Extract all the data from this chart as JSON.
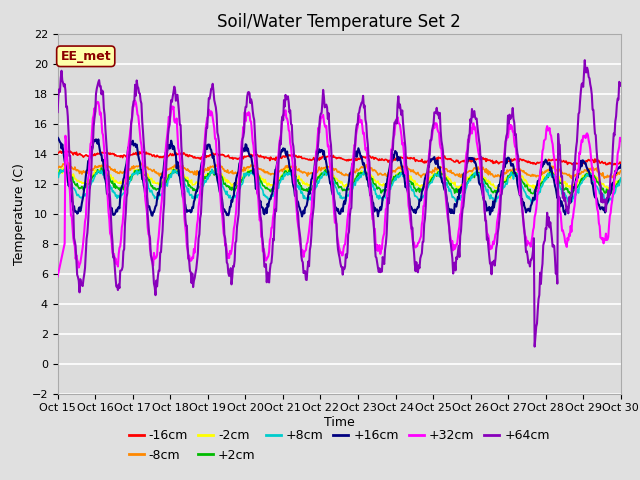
{
  "title": "Soil/Water Temperature Set 2",
  "xlabel": "Time",
  "ylabel": "Temperature (C)",
  "ylim": [
    -2,
    22
  ],
  "yticks": [
    -2,
    0,
    2,
    4,
    6,
    8,
    10,
    12,
    14,
    16,
    18,
    20,
    22
  ],
  "xtick_labels": [
    "Oct 15",
    "Oct 16",
    "Oct 17",
    "Oct 18",
    "Oct 19",
    "Oct 20",
    "Oct 21",
    "Oct 22",
    "Oct 23",
    "Oct 24",
    "Oct 25",
    "Oct 26",
    "Oct 27",
    "Oct 28",
    "Oct 29",
    "Oct 30"
  ],
  "annotation_text": "EE_met",
  "series_colors": [
    "#ff0000",
    "#ff8800",
    "#ffff00",
    "#00bb00",
    "#00cccc",
    "#000080",
    "#ff00ff",
    "#8800bb"
  ],
  "series_labels": [
    "-16cm",
    "-8cm",
    "-2cm",
    "+2cm",
    "+8cm",
    "+16cm",
    "+32cm",
    "+64cm"
  ],
  "background_color": "#e0e0e0",
  "plot_bg_color": "#dcdcdc",
  "title_fontsize": 12,
  "axis_label_fontsize": 9,
  "tick_fontsize": 8,
  "legend_fontsize": 9
}
